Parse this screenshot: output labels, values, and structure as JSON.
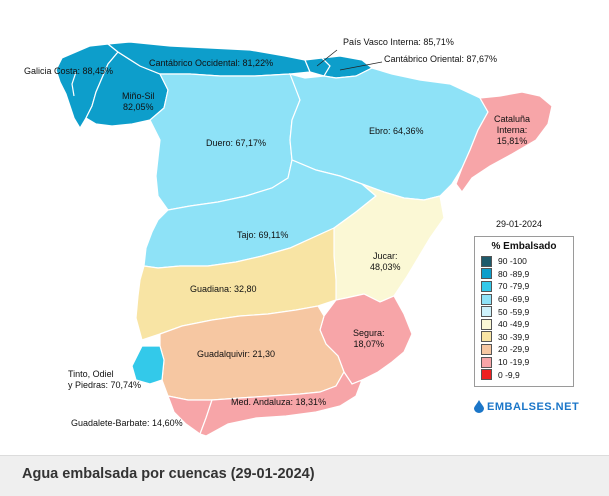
{
  "date": "29-01-2024",
  "legend": {
    "title": "% Embalsado",
    "items": [
      {
        "label": "90 -100",
        "color": "#1e5a6b"
      },
      {
        "label": "80 -89,9",
        "color": "#0d9ecb"
      },
      {
        "label": "70 -79,9",
        "color": "#33c9ea"
      },
      {
        "label": "60 -69,9",
        "color": "#8ee2f7"
      },
      {
        "label": "50 -59,9",
        "color": "#cdf1fb"
      },
      {
        "label": "40 -49,9",
        "color": "#fbf8d5"
      },
      {
        "label": "30 -39,9",
        "color": "#f8e4a4"
      },
      {
        "label": "20 -29,9",
        "color": "#f6c7a2"
      },
      {
        "label": "10 -19,9",
        "color": "#f7a5a8"
      },
      {
        "label": "0 -9,9",
        "color": "#ee2020"
      }
    ]
  },
  "basins": [
    {
      "id": "galicia-costa",
      "label": "Galicia Costa: 88,45%",
      "value": 88.45,
      "color": "#0d9ecb"
    },
    {
      "id": "mino-sil",
      "label": "Miño-Sil\n82,05%",
      "value": 82.05,
      "color": "#0d9ecb"
    },
    {
      "id": "cantabrico-occidental",
      "label": "Cantábrico Occidental: 81,22%",
      "value": 81.22,
      "color": "#0d9ecb"
    },
    {
      "id": "pais-vasco-interna",
      "label": "País Vasco Interna: 85,71%",
      "value": 85.71,
      "color": "#0d9ecb"
    },
    {
      "id": "cantabrico-oriental",
      "label": "Cantábrico Oriental: 87,67%",
      "value": 87.67,
      "color": "#0d9ecb"
    },
    {
      "id": "duero",
      "label": "Duero: 67,17%",
      "value": 67.17,
      "color": "#8ee2f7"
    },
    {
      "id": "ebro",
      "label": "Ebro: 64,36%",
      "value": 64.36,
      "color": "#8ee2f7"
    },
    {
      "id": "cataluna-interna",
      "label": "Cataluña\nInterna:\n15,81%",
      "value": 15.81,
      "color": "#f7a5a8"
    },
    {
      "id": "tajo",
      "label": "Tajo: 69,11%",
      "value": 69.11,
      "color": "#8ee2f7"
    },
    {
      "id": "jucar",
      "label": "Jucar:\n48,03%",
      "value": 48.03,
      "color": "#fbf8d5"
    },
    {
      "id": "guadiana",
      "label": "Guadiana: 32,80",
      "value": 32.8,
      "color": "#f8e4a4"
    },
    {
      "id": "segura",
      "label": "Segura:\n18,07%",
      "value": 18.07,
      "color": "#f7a5a8"
    },
    {
      "id": "guadalquivir",
      "label": "Guadalquivir: 21,30",
      "value": 21.3,
      "color": "#f6c7a2"
    },
    {
      "id": "tinto-odiel-piedras",
      "label": "Tinto, Odiel\ny Piedras: 70,74%",
      "value": 70.74,
      "color": "#33c9ea"
    },
    {
      "id": "guadalete-barbate",
      "label": "Guadalete-Barbate: 14,60%",
      "value": 14.6,
      "color": "#f7a5a8"
    },
    {
      "id": "med-andaluza",
      "label": "Med. Andaluza: 18,31%",
      "value": 18.31,
      "color": "#f7a5a8"
    }
  ],
  "brand": "EMBALSES.NET",
  "footer": {
    "title": "Agua embalsada por cuencas (29-01-2024)"
  }
}
